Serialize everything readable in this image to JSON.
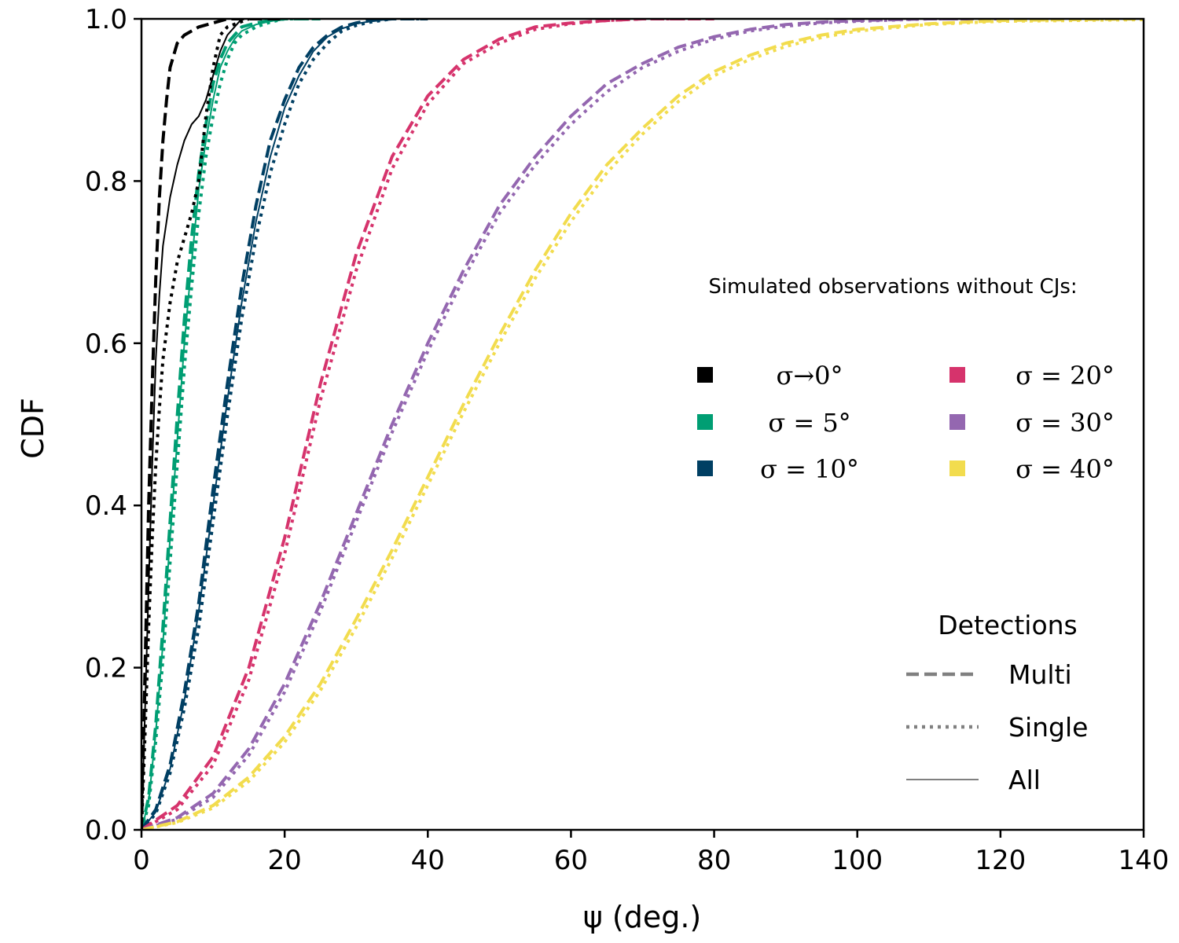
{
  "chart_data": {
    "type": "line",
    "xlabel": "ψ (deg.)",
    "ylabel": "CDF",
    "xlim": [
      0,
      140
    ],
    "ylim": [
      0,
      1.0
    ],
    "x_ticks": [
      "0",
      "20",
      "40",
      "60",
      "80",
      "100",
      "120",
      "140"
    ],
    "y_ticks": [
      "0.0",
      "0.2",
      "0.4",
      "0.6",
      "0.8",
      "1.0"
    ],
    "grid": false,
    "legend_sigma": {
      "title": "Simulated observations without CJs:",
      "placement": "center-right",
      "entries": [
        {
          "label": "σ→0°",
          "color": "#000000"
        },
        {
          "label": "σ = 5°",
          "color": "#009e73"
        },
        {
          "label": "σ = 10°",
          "color": "#003f63"
        },
        {
          "label": "σ = 20°",
          "color": "#d6336c"
        },
        {
          "label": "σ = 30°",
          "color": "#9467b0"
        },
        {
          "label": "σ = 40°",
          "color": "#f2dc4e"
        }
      ]
    },
    "legend_detections": {
      "title": "Detections",
      "placement": "lower-right",
      "entries": [
        {
          "label": "Multi",
          "style": "dashed"
        },
        {
          "label": "Single",
          "style": "dotted"
        },
        {
          "label": "All",
          "style": "solid"
        }
      ]
    },
    "series": [
      {
        "color": "#009e73",
        "style": "dashed",
        "x": [
          0,
          1,
          2,
          3,
          4,
          5,
          6,
          7,
          8,
          9,
          10,
          11,
          12,
          13,
          14,
          16,
          18,
          20,
          25
        ],
        "y": [
          0,
          0.04,
          0.13,
          0.25,
          0.38,
          0.51,
          0.63,
          0.73,
          0.81,
          0.87,
          0.92,
          0.95,
          0.97,
          0.98,
          0.99,
          0.995,
          0.998,
          1.0,
          1.0
        ]
      },
      {
        "color": "#009e73",
        "style": "solid",
        "x": [
          0,
          1,
          2,
          3,
          4,
          5,
          6,
          7,
          8,
          9,
          10,
          11,
          12,
          13,
          14,
          16,
          18,
          20,
          25
        ],
        "y": [
          0,
          0.035,
          0.12,
          0.23,
          0.36,
          0.48,
          0.6,
          0.7,
          0.79,
          0.85,
          0.9,
          0.94,
          0.96,
          0.975,
          0.985,
          0.993,
          0.997,
          1.0,
          1.0
        ]
      },
      {
        "color": "#009e73",
        "style": "dotted",
        "x": [
          0,
          1,
          2,
          3,
          4,
          5,
          6,
          7,
          8,
          9,
          10,
          11,
          12,
          13,
          14,
          16,
          18,
          20,
          25
        ],
        "y": [
          0,
          0.03,
          0.11,
          0.21,
          0.33,
          0.45,
          0.57,
          0.67,
          0.76,
          0.83,
          0.88,
          0.92,
          0.95,
          0.97,
          0.98,
          0.99,
          0.996,
          1.0,
          1.0
        ]
      },
      {
        "color": "#003f63",
        "style": "dashed",
        "x": [
          0,
          2,
          4,
          6,
          8,
          10,
          12,
          14,
          16,
          18,
          20,
          22,
          24,
          26,
          28,
          30,
          32,
          35,
          40
        ],
        "y": [
          0,
          0.025,
          0.08,
          0.17,
          0.28,
          0.42,
          0.55,
          0.67,
          0.77,
          0.85,
          0.9,
          0.94,
          0.965,
          0.98,
          0.99,
          0.995,
          0.998,
          1.0,
          1.0
        ]
      },
      {
        "color": "#003f63",
        "style": "solid",
        "x": [
          0,
          2,
          4,
          6,
          8,
          10,
          12,
          14,
          16,
          18,
          20,
          22,
          24,
          26,
          28,
          30,
          32,
          35,
          40
        ],
        "y": [
          0,
          0.022,
          0.075,
          0.16,
          0.27,
          0.4,
          0.53,
          0.65,
          0.75,
          0.83,
          0.89,
          0.93,
          0.96,
          0.978,
          0.988,
          0.994,
          0.997,
          1.0,
          1.0
        ]
      },
      {
        "color": "#003f63",
        "style": "dotted",
        "x": [
          0,
          2,
          4,
          6,
          8,
          10,
          12,
          14,
          16,
          18,
          20,
          22,
          24,
          26,
          28,
          30,
          32,
          35,
          40
        ],
        "y": [
          0,
          0.02,
          0.07,
          0.15,
          0.25,
          0.38,
          0.51,
          0.63,
          0.73,
          0.81,
          0.87,
          0.92,
          0.95,
          0.97,
          0.985,
          0.992,
          0.996,
          1.0,
          1.0
        ]
      },
      {
        "color": "#d6336c",
        "style": "dashed",
        "x": [
          0,
          5,
          10,
          15,
          20,
          25,
          30,
          35,
          40,
          45,
          50,
          55,
          60,
          65,
          70,
          75,
          80
        ],
        "y": [
          0,
          0.03,
          0.09,
          0.2,
          0.36,
          0.55,
          0.71,
          0.83,
          0.905,
          0.95,
          0.975,
          0.99,
          0.995,
          0.998,
          1.0,
          1.0,
          1.0
        ]
      },
      {
        "color": "#d6336c",
        "style": "dotted",
        "x": [
          0,
          5,
          10,
          15,
          20,
          25,
          30,
          35,
          40,
          45,
          50,
          55,
          60,
          65,
          70,
          75,
          80
        ],
        "y": [
          0,
          0.025,
          0.08,
          0.185,
          0.34,
          0.53,
          0.69,
          0.815,
          0.895,
          0.945,
          0.97,
          0.987,
          0.994,
          0.998,
          1.0,
          1.0,
          1.0
        ]
      },
      {
        "color": "#9467b0",
        "style": "dashed",
        "x": [
          0,
          5,
          10,
          15,
          20,
          25,
          30,
          35,
          40,
          45,
          50,
          55,
          60,
          65,
          70,
          75,
          80,
          85,
          90,
          95,
          100,
          110,
          120
        ],
        "y": [
          0,
          0.015,
          0.045,
          0.1,
          0.18,
          0.28,
          0.39,
          0.5,
          0.6,
          0.69,
          0.77,
          0.83,
          0.88,
          0.92,
          0.945,
          0.965,
          0.978,
          0.987,
          0.993,
          0.996,
          0.998,
          1.0,
          1.0
        ]
      },
      {
        "color": "#9467b0",
        "style": "dotted",
        "x": [
          0,
          5,
          10,
          15,
          20,
          25,
          30,
          35,
          40,
          45,
          50,
          55,
          60,
          65,
          70,
          75,
          80,
          85,
          90,
          95,
          100,
          110,
          120
        ],
        "y": [
          0,
          0.013,
          0.04,
          0.092,
          0.17,
          0.27,
          0.38,
          0.49,
          0.59,
          0.68,
          0.76,
          0.82,
          0.87,
          0.91,
          0.94,
          0.96,
          0.975,
          0.985,
          0.991,
          0.995,
          0.997,
          1.0,
          1.0
        ]
      },
      {
        "color": "#f2dc4e",
        "style": "dashed",
        "x": [
          0,
          5,
          10,
          15,
          20,
          25,
          30,
          35,
          40,
          45,
          50,
          55,
          60,
          65,
          70,
          75,
          80,
          85,
          90,
          95,
          100,
          110,
          120,
          130,
          140
        ],
        "y": [
          0,
          0.01,
          0.03,
          0.065,
          0.115,
          0.18,
          0.26,
          0.345,
          0.435,
          0.525,
          0.61,
          0.69,
          0.76,
          0.82,
          0.865,
          0.905,
          0.935,
          0.955,
          0.97,
          0.98,
          0.987,
          0.994,
          0.998,
          0.999,
          1.0
        ]
      },
      {
        "color": "#f2dc4e",
        "style": "dotted",
        "x": [
          0,
          5,
          10,
          15,
          20,
          25,
          30,
          35,
          40,
          45,
          50,
          55,
          60,
          65,
          70,
          75,
          80,
          85,
          90,
          95,
          100,
          110,
          120,
          130,
          140
        ],
        "y": [
          0,
          0.009,
          0.027,
          0.06,
          0.108,
          0.172,
          0.25,
          0.335,
          0.425,
          0.515,
          0.6,
          0.68,
          0.75,
          0.81,
          0.858,
          0.898,
          0.93,
          0.95,
          0.966,
          0.977,
          0.985,
          0.993,
          0.997,
          0.998,
          0.999
        ]
      },
      {
        "color": "#000000",
        "style": "dashed",
        "x": [
          0,
          0.5,
          1,
          1.5,
          2,
          2.5,
          3,
          3.5,
          4,
          5,
          6,
          8,
          10,
          12,
          15,
          20
        ],
        "y": [
          0,
          0.2,
          0.4,
          0.55,
          0.68,
          0.78,
          0.85,
          0.9,
          0.94,
          0.97,
          0.98,
          0.99,
          0.995,
          1.0,
          1.0,
          1.0
        ]
      },
      {
        "color": "#000000",
        "style": "dotted",
        "x": [
          0,
          0.5,
          1,
          1.5,
          2,
          2.5,
          3,
          4,
          5,
          6,
          7,
          8,
          9,
          10,
          11,
          12,
          15
        ],
        "y": [
          0,
          0.12,
          0.25,
          0.36,
          0.45,
          0.52,
          0.58,
          0.65,
          0.7,
          0.73,
          0.76,
          0.8,
          0.88,
          0.94,
          0.98,
          0.99,
          1.0
        ]
      },
      {
        "color": "#000000",
        "style": "solid",
        "x": [
          0,
          0.5,
          1,
          1.5,
          2,
          2.5,
          3,
          4,
          5,
          6,
          7,
          8,
          9,
          10,
          11,
          12,
          13,
          14
        ],
        "y": [
          0,
          0.15,
          0.3,
          0.45,
          0.58,
          0.66,
          0.72,
          0.78,
          0.82,
          0.85,
          0.87,
          0.88,
          0.9,
          0.93,
          0.96,
          0.98,
          0.99,
          1.0
        ]
      }
    ]
  }
}
